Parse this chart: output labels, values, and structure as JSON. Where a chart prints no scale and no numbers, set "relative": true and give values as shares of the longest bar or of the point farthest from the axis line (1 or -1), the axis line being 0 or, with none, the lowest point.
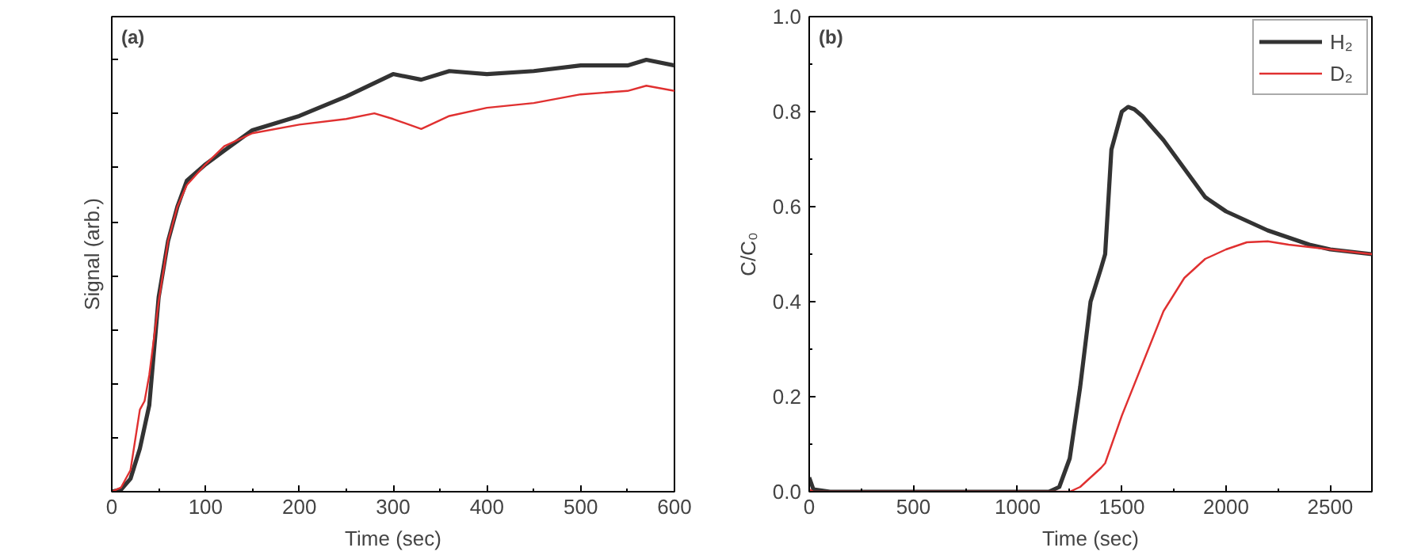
{
  "chart_data": [
    {
      "type": "line",
      "relative": true,
      "tick_labels": "x",
      "xlabel": "Time (sec)",
      "ylabel": "Signal (arb.)",
      "annotations": [
        "(a)"
      ],
      "xlim": [
        0,
        600
      ],
      "xticks": [
        0,
        100,
        200,
        300,
        400,
        500,
        600
      ],
      "grid": false,
      "legend": false,
      "line_style": "solid",
      "series": [
        {
          "color": "#333333",
          "x": [
            0,
            10,
            20,
            30,
            40,
            50,
            60,
            70,
            80,
            100,
            120,
            150,
            200,
            250,
            300,
            330,
            360,
            400,
            450,
            500,
            550,
            570,
            600
          ],
          "values": [
            0,
            0.005,
            0.03,
            0.1,
            0.2,
            0.45,
            0.58,
            0.66,
            0.72,
            0.758,
            0.79,
            0.837,
            0.87,
            0.915,
            0.967,
            0.954,
            0.974,
            0.967,
            0.974,
            0.987,
            0.987,
            1.0,
            0.987
          ]
        },
        {
          "color": "#e03030",
          "x": [
            0,
            10,
            20,
            30,
            35,
            40,
            50,
            60,
            70,
            80,
            100,
            120,
            150,
            200,
            250,
            280,
            300,
            330,
            360,
            400,
            450,
            500,
            550,
            570,
            600
          ],
          "values": [
            0,
            0.01,
            0.05,
            0.19,
            0.21,
            0.27,
            0.44,
            0.58,
            0.66,
            0.71,
            0.758,
            0.8,
            0.83,
            0.85,
            0.863,
            0.876,
            0.863,
            0.84,
            0.87,
            0.889,
            0.9,
            0.92,
            0.928,
            0.94,
            0.928
          ]
        }
      ]
    },
    {
      "type": "line",
      "xlabel": "Time (sec)",
      "ylabel": "C/C₀",
      "annotations": [
        "(b)"
      ],
      "xlim": [
        0,
        2700
      ],
      "xticks": [
        0,
        500,
        1000,
        1500,
        2000,
        2500
      ],
      "ylim": [
        0,
        1.0
      ],
      "yticks": [
        {
          "value": 0,
          "label": "0.0"
        },
        {
          "value": 0.2,
          "label": "0.2"
        },
        {
          "value": 0.4,
          "label": "0.4"
        },
        {
          "value": 0.6,
          "label": "0.6"
        },
        {
          "value": 0.8,
          "label": "0.8"
        },
        {
          "value": 1.0,
          "label": "1.0"
        }
      ],
      "grid": false,
      "legend": "top right",
      "line_style": "solid",
      "series": [
        {
          "name": "H₂",
          "color": "#333333",
          "x": [
            0,
            20,
            100,
            1150,
            1200,
            1250,
            1300,
            1350,
            1400,
            1420,
            1450,
            1500,
            1530,
            1560,
            1600,
            1700,
            1800,
            1900,
            2000,
            2100,
            2200,
            2300,
            2400,
            2500,
            2600,
            2700
          ],
          "values": [
            0.03,
            0.005,
            0,
            0,
            0.01,
            0.07,
            0.22,
            0.4,
            0.47,
            0.5,
            0.72,
            0.8,
            0.81,
            0.805,
            0.79,
            0.74,
            0.68,
            0.62,
            0.59,
            0.57,
            0.55,
            0.535,
            0.52,
            0.51,
            0.505,
            0.5
          ]
        },
        {
          "name": "D₂",
          "color": "#e03030",
          "x": [
            0,
            20,
            1250,
            1300,
            1400,
            1420,
            1500,
            1600,
            1700,
            1800,
            1900,
            2000,
            2100,
            2200,
            2300,
            2400,
            2500,
            2600,
            2700
          ],
          "values": [
            0.005,
            0,
            0,
            0.01,
            0.05,
            0.06,
            0.16,
            0.27,
            0.38,
            0.45,
            0.49,
            0.51,
            0.525,
            0.527,
            0.52,
            0.515,
            0.51,
            0.505,
            0.5
          ]
        }
      ]
    }
  ]
}
